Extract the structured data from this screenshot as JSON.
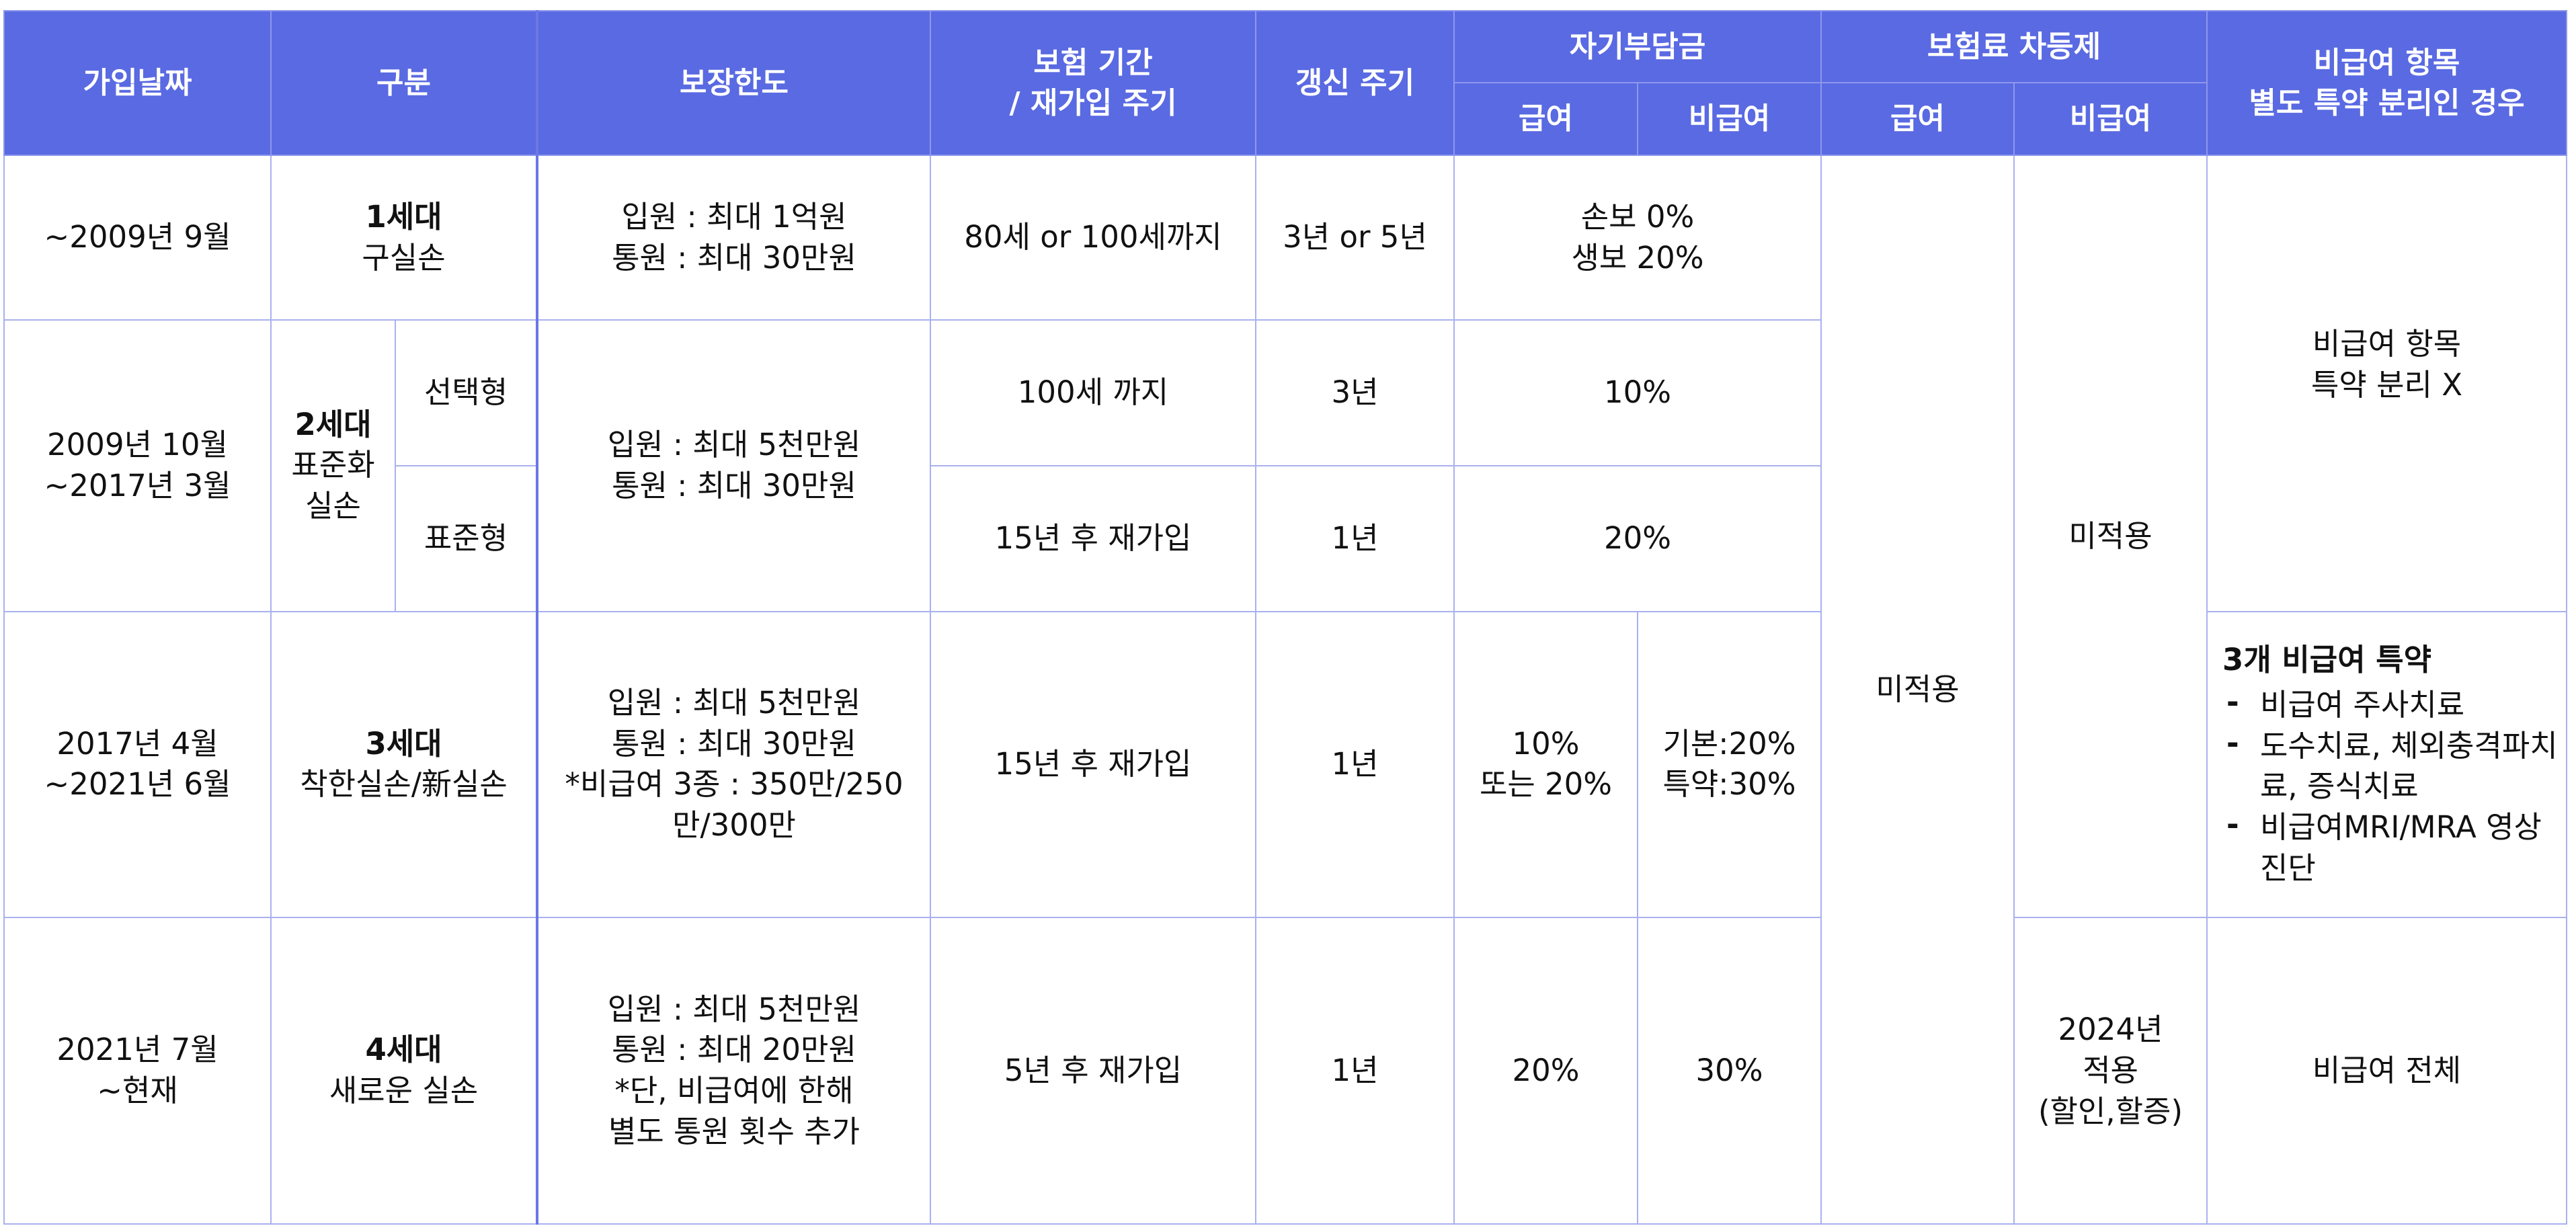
{
  "headers": {
    "join_date": "가입날짜",
    "category": "구분",
    "coverage": "보장한도",
    "period_lines": [
      "보험 기간",
      "/ 재가입 주기"
    ],
    "renewal": "갱신 주기",
    "deductible": "자기부담금",
    "premium": "보험료 차등제",
    "covered": "급여",
    "noncovered": "비급여",
    "covered2": "급여",
    "noncovered2": "비급여",
    "rider_lines": [
      "비급여 항목",
      "별도 특약 분리인 경우"
    ]
  },
  "rows": {
    "gen1": {
      "date": "~2009년 9월",
      "gen": "1세대",
      "name": "구실손",
      "coverage": [
        "입원 : 최대 1억원",
        "통원 : 최대 30만원"
      ],
      "period": "80세 or 100세까지",
      "renewal": "3년 or 5년",
      "deductible": [
        "손보 0%",
        "생보 20%"
      ]
    },
    "gen2": {
      "date": [
        "2009년 10월",
        "~2017년 3월"
      ],
      "gen": "2세대",
      "name": [
        "표준화",
        "실손"
      ],
      "sub1": "선택형",
      "sub2": "표준형",
      "coverage": [
        "입원 : 최대 5천만원",
        "통원 : 최대 30만원"
      ],
      "period1": "100세 까지",
      "renewal1": "3년",
      "deductible1": "10%",
      "period2": "15년 후 재가입",
      "renewal2": "1년",
      "deductible2": "20%",
      "rider": [
        "비급여 항목",
        "특약 분리 X"
      ]
    },
    "gen3": {
      "date": [
        "2017년 4월",
        "~2021년 6월"
      ],
      "gen": "3세대",
      "name": "착한실손/新실손",
      "coverage": [
        "입원 : 최대 5천만원",
        "통원 : 최대 30만원",
        "*비급여 3종 : 350만/250",
        "만/300만"
      ],
      "period": "15년 후 재가입",
      "renewal": "1년",
      "covered_ded": [
        "10%",
        "또는 20%"
      ],
      "noncovered_ded": [
        "기본:20%",
        "특약:30%"
      ],
      "rider_title": "3개 비급여 특약",
      "riders": [
        "비급여 주사치료",
        "도수치료, 체외충격파치료, 증식치료",
        "비급여MRI/MRA 영상 진단"
      ]
    },
    "gen4": {
      "date": [
        "2021년 7월",
        "~현재"
      ],
      "gen": "4세대",
      "name": "새로운 실손",
      "coverage": [
        "입원 : 최대 5천만원",
        "통원 : 최대 20만원",
        "*단, 비급여에 한해",
        "별도 통원 횟수 추가"
      ],
      "period": "5년 후 재가입",
      "renewal": "1년",
      "covered_ded": "20%",
      "noncovered_ded": "30%",
      "premium_noncovered": [
        "2024년",
        "적용",
        "(할인,할증)"
      ],
      "rider": "비급여 전체"
    },
    "premium_covered_all": "미적용",
    "premium_noncovered_1to3": "미적용"
  }
}
